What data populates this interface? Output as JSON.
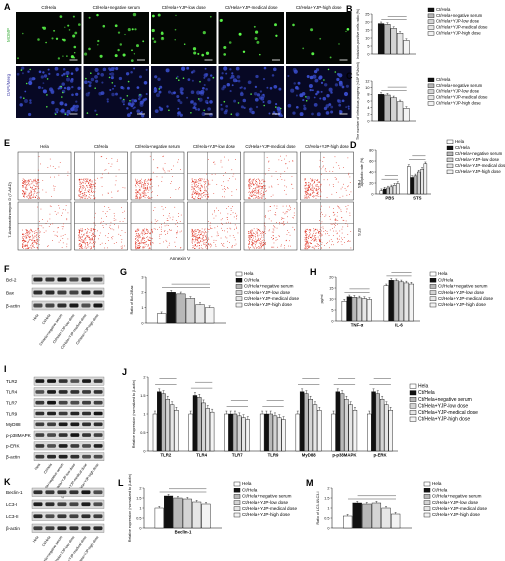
{
  "panels": {
    "A": {
      "letter": "A",
      "columns": [
        "Ct/Hela",
        "Ct/Hela+negative serum",
        "Ct/Hela+YJP-low dose",
        "Ct/Hela+YJP-medical dose",
        "Ct/Hela+YJP-high dose"
      ],
      "row_labels": [
        "MOMP",
        "DAPI/Merg"
      ]
    },
    "E": {
      "letter": "E",
      "columns": [
        "Hela",
        "Ct/Hela",
        "Ct/Hela+negative serum",
        "Ct/Hela+YJP-low dose",
        "Ct/Hela+YJP-medical dose",
        "Ct/Hela+YJP-high dose"
      ],
      "row_tags": [
        "PBS",
        "STS"
      ],
      "xlabel": "Annexin V",
      "ylabel": "7-Aminoactinomycin D (7-AAD)"
    },
    "F": {
      "letter": "F",
      "bands": [
        "Bcl-2",
        "Bax",
        "β-actin"
      ],
      "lanes": [
        "Hela",
        "Ct/Hela",
        "Ct/Hela+negative serum",
        "Ct/Hela+YJP-low dose",
        "Ct/Hela+YJP-medical dose",
        "Ct/Hela+YJP-high dose"
      ]
    },
    "I": {
      "letter": "I",
      "bands": [
        "TLR2",
        "TLR4",
        "TLR7",
        "TLR9",
        "MyD88",
        "p-p38MAPK",
        "p-ERK",
        "β-actin"
      ],
      "lanes": [
        "Hela",
        "Ct/Hela",
        "Ct/Hela+negative serum",
        "Ct/Hela+YJP-low dose",
        "Ct/Hela+YJP-medical dose",
        "Ct/Hela+YJP-high dose"
      ]
    },
    "K": {
      "letter": "K",
      "bands": [
        "Beclin-1",
        "LC3-I",
        "LC3-II",
        "β-actin"
      ],
      "lanes": [
        "Hela",
        "Ct/Hela",
        "Ct/Hela+negative serum",
        "Ct/Hela+YJP-low dose",
        "Ct/Hela+YJP-medical dose",
        "Ct/Hela+YJP-high dose"
      ]
    }
  },
  "chart_data": [
    {
      "id": "B",
      "letter": "B",
      "type": "bar",
      "ylabel": "Inclusion-positive cells ratio (%)",
      "categories": [
        ""
      ],
      "ylim": [
        0,
        25
      ],
      "yticks": [
        0,
        5,
        10,
        15,
        20,
        25
      ],
      "series": [
        {
          "name": "Ct/Hela",
          "values": [
            19
          ]
        },
        {
          "name": "Ct/Hela+negative serum",
          "values": [
            18.5
          ]
        },
        {
          "name": "Ct/Hela+YJP-low dose",
          "values": [
            16
          ]
        },
        {
          "name": "Ct/Hela+YJP-medical dose",
          "values": [
            13
          ]
        },
        {
          "name": "Ct/Hela+YJP-high dose",
          "values": [
            8.5
          ]
        }
      ],
      "legend_placement": "right",
      "colors": [
        "#111111",
        "#b8b8b8",
        "#d4d4d4",
        "#e6e6e6",
        "#f3f3f3"
      ]
    },
    {
      "id": "C",
      "letter": "C",
      "type": "bar",
      "ylabel": "The number of infectious progeny (×10⁵ IFUs/ml)",
      "categories": [
        ""
      ],
      "ylim": [
        0,
        12
      ],
      "yticks": [
        0,
        2,
        4,
        6,
        8,
        10,
        12
      ],
      "series": [
        {
          "name": "Ct/Hela",
          "values": [
            8
          ]
        },
        {
          "name": "Ct/Hela+negative serum",
          "values": [
            7.8
          ]
        },
        {
          "name": "Ct/Hela+YJP-low dose",
          "values": [
            7
          ]
        },
        {
          "name": "Ct/Hela+YJP-medical dose",
          "values": [
            5.8
          ]
        },
        {
          "name": "Ct/Hela+YJP-high dose",
          "values": [
            3.8
          ]
        }
      ],
      "legend_placement": "right",
      "colors": [
        "#111111",
        "#b8b8b8",
        "#d4d4d4",
        "#e6e6e6",
        "#f3f3f3"
      ]
    },
    {
      "id": "D",
      "letter": "D",
      "type": "bar",
      "ylabel": "Apoptotic rate (%)",
      "categories": [
        "PBS",
        "STS"
      ],
      "ylim": [
        0,
        80
      ],
      "yticks": [
        0,
        20,
        40,
        60,
        80
      ],
      "series": [
        {
          "name": "Hela",
          "values": [
            6,
            50
          ]
        },
        {
          "name": "Ct/Hela",
          "values": [
            9,
            30
          ]
        },
        {
          "name": "Ct/Hela+negative serum",
          "values": [
            11,
            33
          ]
        },
        {
          "name": "Ct/Hela+YJP-low dose",
          "values": [
            13,
            40
          ]
        },
        {
          "name": "Ct/Hela+YJP-medical dose",
          "values": [
            16,
            45
          ]
        },
        {
          "name": "Ct/Hela+YJP-high dose",
          "values": [
            19,
            55
          ]
        }
      ],
      "legend_placement": "right",
      "colors": [
        "#ffffff",
        "#111111",
        "#b8b8b8",
        "#d4d4d4",
        "#e6e6e6",
        "#f3f3f3"
      ]
    },
    {
      "id": "G",
      "letter": "G",
      "type": "bar",
      "ylabel": "Ratio of Bcl-2/Bax",
      "categories": [
        ""
      ],
      "ylim": [
        0,
        3
      ],
      "yticks": [
        0,
        1,
        2,
        3
      ],
      "series": [
        {
          "name": "Hela",
          "values": [
            0.6
          ]
        },
        {
          "name": "Ct/Hela",
          "values": [
            2.0
          ]
        },
        {
          "name": "Ct/Hela+negative serum",
          "values": [
            1.9
          ]
        },
        {
          "name": "Ct/Hela+YJP-low dose",
          "values": [
            1.6
          ]
        },
        {
          "name": "Ct/Hela+YJP-medical dose",
          "values": [
            1.2
          ]
        },
        {
          "name": "Ct/Hela+YJP-high dose",
          "values": [
            1.0
          ]
        }
      ],
      "legend_placement": "right",
      "colors": [
        "#ffffff",
        "#111111",
        "#b8b8b8",
        "#d4d4d4",
        "#e6e6e6",
        "#f3f3f3"
      ]
    },
    {
      "id": "H",
      "letter": "H",
      "type": "bar",
      "ylabel": "pg/ml",
      "categories": [
        "TNF-α",
        "IL-6"
      ],
      "ylim": [
        0,
        20
      ],
      "yticks": [
        0,
        5,
        10,
        15,
        20
      ],
      "series": [
        {
          "name": "Hela",
          "values": [
            9,
            16
          ]
        },
        {
          "name": "Ct/Hela",
          "values": [
            11,
            18.5
          ]
        },
        {
          "name": "Ct/Hela+negative serum",
          "values": [
            10.8,
            18.3
          ]
        },
        {
          "name": "Ct/Hela+YJP-low dose",
          "values": [
            10.5,
            17.8
          ]
        },
        {
          "name": "Ct/Hela+YJP-medical dose",
          "values": [
            10.2,
            17.3
          ]
        },
        {
          "name": "Ct/Hela+YJP-high dose",
          "values": [
            9.8,
            16.8
          ]
        }
      ],
      "legend_placement": "right",
      "colors": [
        "#ffffff",
        "#111111",
        "#b8b8b8",
        "#d4d4d4",
        "#e6e6e6",
        "#f3f3f3"
      ]
    },
    {
      "id": "J",
      "letter": "J",
      "type": "bar",
      "ylabel": "Relative expression (normalized to β-actin)",
      "categories": [
        "TLR2",
        "TLR4",
        "TLR7",
        "TLR9",
        "MyD88",
        "p-p38MAPK",
        "p-ERK"
      ],
      "ylim": [
        0,
        2.0
      ],
      "yticks": [
        0.0,
        0.5,
        1.0,
        1.5,
        2.0
      ],
      "series": [
        {
          "name": "Hela",
          "values": [
            1.0,
            1.0,
            1.0,
            1.0,
            1.0,
            1.0,
            1.0
          ]
        },
        {
          "name": "Ct/Hela",
          "values": [
            1.6,
            1.5,
            1.0,
            1.0,
            1.6,
            1.6,
            1.6
          ]
        },
        {
          "name": "Ct/Hela+negative serum",
          "values": [
            1.55,
            1.45,
            1.0,
            1.0,
            1.55,
            1.55,
            1.55
          ]
        },
        {
          "name": "Ct/Hela+YJP-low dose",
          "values": [
            1.4,
            1.3,
            0.95,
            0.95,
            1.4,
            1.4,
            1.4
          ]
        },
        {
          "name": "Ct/Hela+YJP-medical dose",
          "values": [
            1.25,
            1.15,
            0.9,
            0.9,
            1.25,
            1.25,
            1.25
          ]
        },
        {
          "name": "Ct/Hela+YJP-high dose",
          "values": [
            1.1,
            1.05,
            0.85,
            0.85,
            1.1,
            1.1,
            1.1
          ]
        }
      ],
      "legend_placement": "right",
      "colors": [
        "#ffffff",
        "#111111",
        "#b8b8b8",
        "#d4d4d4",
        "#e6e6e6",
        "#f3f3f3"
      ]
    },
    {
      "id": "L",
      "letter": "L",
      "type": "bar",
      "ylabel": "Relative expression (normalized to β-actin)",
      "categories": [
        "Beclin-1"
      ],
      "ylim": [
        0,
        2.0
      ],
      "yticks": [
        0.0,
        0.5,
        1.0,
        1.5,
        2.0
      ],
      "series": [
        {
          "name": "Hela",
          "values": [
            1.0
          ]
        },
        {
          "name": "Ct/Hela",
          "values": [
            1.6
          ]
        },
        {
          "name": "Ct/Hela+negative serum",
          "values": [
            1.5
          ]
        },
        {
          "name": "Ct/Hela+YJP-low dose",
          "values": [
            1.45
          ]
        },
        {
          "name": "Ct/Hela+YJP-medical dose",
          "values": [
            1.3
          ]
        },
        {
          "name": "Ct/Hela+YJP-high dose",
          "values": [
            1.2
          ]
        }
      ],
      "legend_placement": "right",
      "colors": [
        "#ffffff",
        "#111111",
        "#b8b8b8",
        "#d4d4d4",
        "#e6e6e6",
        "#f3f3f3"
      ]
    },
    {
      "id": "M",
      "letter": "M",
      "type": "bar",
      "ylabel": "Ratio of LC3-II/LC3-I",
      "categories": [
        ""
      ],
      "ylim": [
        0,
        2.0
      ],
      "yticks": [
        0.0,
        0.5,
        1.0,
        1.5,
        2.0
      ],
      "series": [
        {
          "name": "Hela",
          "values": [
            0.6
          ]
        },
        {
          "name": "Ct/Hela",
          "values": [
            1.25
          ]
        },
        {
          "name": "Ct/Hela+negative serum",
          "values": [
            1.2
          ]
        },
        {
          "name": "Ct/Hela+YJP-low dose",
          "values": [
            1.25
          ]
        },
        {
          "name": "Ct/Hela+YJP-medical dose",
          "values": [
            1.0
          ]
        },
        {
          "name": "Ct/Hela+YJP-high dose",
          "values": [
            0.7
          ]
        }
      ],
      "legend_placement": "right",
      "colors": [
        "#ffffff",
        "#111111",
        "#b8b8b8",
        "#d4d4d4",
        "#e6e6e6",
        "#f3f3f3"
      ]
    }
  ]
}
